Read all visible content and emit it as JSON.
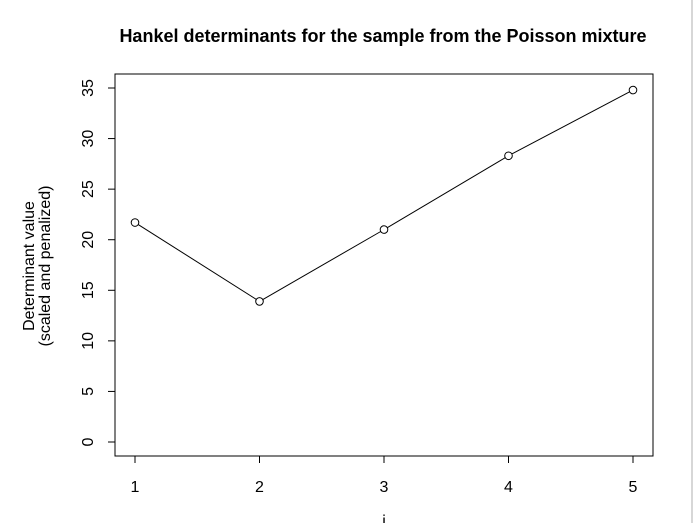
{
  "chart_data": {
    "type": "line",
    "title": "Hankel determinants for the sample from the Poisson mixture",
    "xlabel": "i",
    "ylabel_lines": [
      "Determinant value",
      "(scaled and penalized)"
    ],
    "x": [
      1,
      2,
      3,
      4,
      5
    ],
    "series": [
      {
        "values": [
          21.7,
          13.9,
          21.0,
          28.3,
          34.8
        ]
      }
    ],
    "xlim": [
      1,
      5
    ],
    "ylim": [
      0,
      35
    ],
    "x_ticks": [
      1,
      2,
      3,
      4,
      5
    ],
    "y_ticks": [
      0,
      5,
      10,
      15,
      20,
      25,
      30,
      35
    ],
    "grid": false,
    "legend": "none",
    "marker": "open-circle",
    "colors": {
      "line": "#000000",
      "axis": "#000000",
      "background": "#ffffff"
    }
  }
}
